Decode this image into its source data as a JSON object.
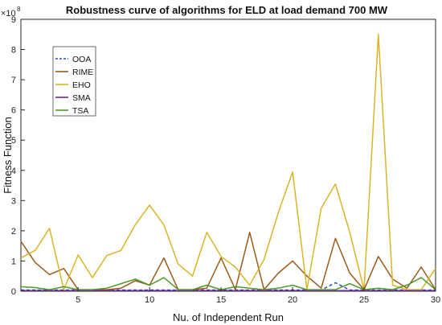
{
  "chart_data": {
    "type": "line",
    "title": "Robustness curve of algorithms for ELD at load demand 700 MW",
    "xlabel": "Nu. of Independent Run",
    "ylabel": "Fitness Function",
    "y_exponent_label": "×10",
    "y_exponent_power": "8",
    "xlim": [
      1,
      30
    ],
    "ylim": [
      0,
      9
    ],
    "x_ticks": [
      5,
      10,
      15,
      20,
      25,
      30
    ],
    "y_ticks": [
      0,
      1,
      2,
      3,
      4,
      5,
      6,
      7,
      8,
      9
    ],
    "x": [
      1,
      2,
      3,
      4,
      5,
      6,
      7,
      8,
      9,
      10,
      11,
      12,
      13,
      14,
      15,
      16,
      17,
      18,
      19,
      20,
      21,
      22,
      23,
      24,
      25,
      26,
      27,
      28,
      29,
      30
    ],
    "legend_position": "top-left",
    "series": [
      {
        "name": "OOA",
        "color": "#1f4fbf",
        "dashed": true,
        "values": [
          0.04,
          0.04,
          0.04,
          0.04,
          0.04,
          0.04,
          0.04,
          0.04,
          0.04,
          0.04,
          0.04,
          0.04,
          0.04,
          0.04,
          0.04,
          0.04,
          0.04,
          0.04,
          0.04,
          0.04,
          0.04,
          0.04,
          0.28,
          0.04,
          0.04,
          0.04,
          0.04,
          0.04,
          0.04,
          0.04
        ]
      },
      {
        "name": "RIME",
        "color": "#9b5a1a",
        "dashed": false,
        "values": [
          1.65,
          0.95,
          0.55,
          0.75,
          0.05,
          0.05,
          0.05,
          0.1,
          0.35,
          0.2,
          1.1,
          0.05,
          0.05,
          0.1,
          1.1,
          0.05,
          1.95,
          0.05,
          0.6,
          1.0,
          0.5,
          0.1,
          1.75,
          0.6,
          0.05,
          1.15,
          0.4,
          0.1,
          0.8,
          0.05
        ]
      },
      {
        "name": "EHO",
        "color": "#d8b526",
        "dashed": false,
        "values": [
          1.1,
          1.35,
          2.08,
          0.05,
          1.2,
          0.45,
          1.18,
          1.35,
          2.2,
          2.85,
          2.2,
          0.9,
          0.5,
          1.95,
          1.15,
          0.8,
          0.2,
          1.05,
          2.6,
          3.95,
          0.05,
          2.75,
          3.55,
          1.95,
          0.05,
          8.5,
          0.2,
          0.05,
          0.05,
          0.75
        ]
      },
      {
        "name": "SMA",
        "color": "#6a2a8a",
        "dashed": false,
        "values": [
          0.02,
          0.02,
          0.02,
          0.02,
          0.02,
          0.02,
          0.02,
          0.02,
          0.02,
          0.02,
          0.02,
          0.02,
          0.02,
          0.02,
          0.02,
          0.02,
          0.02,
          0.02,
          0.02,
          0.02,
          0.02,
          0.02,
          0.02,
          0.02,
          0.02,
          0.02,
          0.02,
          0.02,
          0.02,
          0.02
        ]
      },
      {
        "name": "TSA",
        "color": "#4f9a2a",
        "dashed": false,
        "values": [
          0.15,
          0.12,
          0.05,
          0.15,
          0.05,
          0.05,
          0.1,
          0.25,
          0.4,
          0.2,
          0.45,
          0.05,
          0.05,
          0.2,
          0.05,
          0.15,
          0.1,
          0.05,
          0.1,
          0.2,
          0.05,
          0.05,
          0.05,
          0.25,
          0.05,
          0.1,
          0.05,
          0.2,
          0.45,
          0.05
        ]
      }
    ]
  }
}
